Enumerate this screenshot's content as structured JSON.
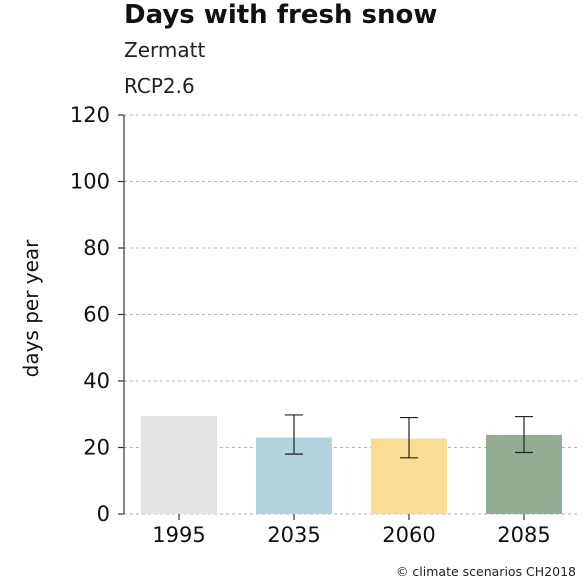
{
  "chart_data": {
    "type": "bar",
    "title": "Days with fresh snow",
    "subtitle_1": "Zermatt",
    "subtitle_2": "RCP2.6",
    "ylabel": "days per year",
    "xlabel": "",
    "categories": [
      "1995",
      "2035",
      "2060",
      "2085"
    ],
    "values": [
      29.5,
      23.0,
      22.7,
      23.8
    ],
    "error_low": [
      null,
      18.0,
      16.9,
      18.5
    ],
    "error_high": [
      null,
      29.8,
      29.0,
      29.3
    ],
    "ylim": [
      0,
      120
    ],
    "yticks": [
      0,
      20,
      40,
      60,
      80,
      100,
      120
    ],
    "grid": true,
    "bar_colors": [
      "#e3e3e3",
      "#b2d4de",
      "#fadc94",
      "#93ac93"
    ],
    "credit": "© climate scenarios CH2018"
  }
}
